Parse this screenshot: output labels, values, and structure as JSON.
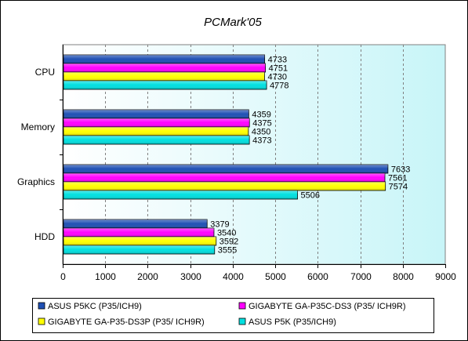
{
  "chart_data": {
    "type": "bar",
    "orientation": "horizontal",
    "title": "PCMark'05",
    "categories": [
      "CPU",
      "Memory",
      "Graphics",
      "HDD"
    ],
    "series": [
      {
        "name": "ASUS P5KC (P35/ICH9)",
        "color": "#1f50b4",
        "values": [
          4733,
          4359,
          7633,
          3379
        ]
      },
      {
        "name": "GIGABYTE GA-P35C-DS3 (P35/ ICH9R)",
        "color": "#ff00ff",
        "values": [
          4751,
          4375,
          7561,
          3540
        ]
      },
      {
        "name": "GIGABYTE GA-P35-DS3P (P35/ ICH9R)",
        "color": "#ffff00",
        "values": [
          4730,
          4350,
          7574,
          3592
        ]
      },
      {
        "name": "ASUS P5K (P35/ICH9)",
        "color": "#00e0e0",
        "values": [
          4778,
          4373,
          5506,
          3555
        ]
      }
    ],
    "xlim": [
      0,
      9000
    ],
    "ticks": [
      0,
      1000,
      2000,
      3000,
      4000,
      5000,
      6000,
      7000,
      8000,
      9000
    ],
    "grid": "vertical dashed",
    "legend_position": "bottom",
    "plot_background": "gradient white to light cyan"
  }
}
